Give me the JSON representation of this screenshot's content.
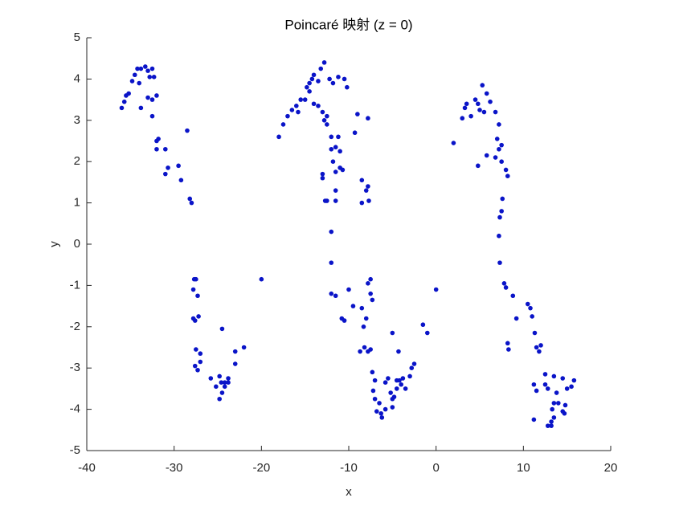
{
  "chart_data": {
    "type": "scatter",
    "title": "Poincaré 映射 (z = 0)",
    "x_label": "x",
    "y_label": "y",
    "color": "#0a14c8",
    "x": [
      -36,
      -35.7,
      -35.5,
      -35.2,
      -34.8,
      -34.5,
      -34.2,
      -33.8,
      -33.3,
      -33,
      -32.5,
      -32.3,
      -32.8,
      -34,
      -33.8,
      -33,
      -32.5,
      -32,
      -32.5,
      -32,
      -31.8,
      -32,
      -31,
      -31,
      -30.7,
      -29.5,
      -29.2,
      -28.5,
      -28.2,
      -28,
      -27.7,
      -27.5,
      -27.8,
      -27.3,
      -27.8,
      -27.6,
      -27.2,
      -27.5,
      -27,
      -27,
      -27.6,
      -27.3,
      -25.8,
      -25.2,
      -24.8,
      -24.6,
      -24.5,
      -24.8,
      -24.2,
      -23.8,
      -23.8,
      -24.5,
      -23,
      -22,
      -23,
      -24.2,
      -20,
      -18,
      -17.5,
      -17,
      -16.5,
      -16,
      -15.8,
      -15.5,
      -15,
      -14.8,
      -14.5,
      -14.2,
      -14,
      -13.5,
      -13.2,
      -12.8,
      -12.2,
      -11.8,
      -11.2,
      -10.5,
      -10.2,
      -14.5,
      -14,
      -13.5,
      -13,
      -12.5,
      -12.8,
      -12.5,
      -12,
      -12,
      -11.8,
      -11.5,
      -11,
      -11.2,
      -11,
      -10.7,
      -11.5,
      -13,
      -13,
      -12.7,
      -12.5,
      -11.5,
      -11.5,
      -12,
      -12,
      -12,
      -11.5,
      -10.8,
      -10.5,
      -10,
      -9.5,
      -8.5,
      -8.3,
      -8.7,
      -8.2,
      -7.8,
      -7.5,
      -8,
      -7.5,
      -7.8,
      -7.5,
      -7.3,
      -8.5,
      -8,
      -7.8,
      -7.8,
      -9,
      -9.3,
      -8.5,
      -7.7,
      -7.3,
      -7,
      -7.2,
      -7,
      -6.8,
      -6.5,
      -6.3,
      -6.2,
      -5.8,
      -5.5,
      -5.2,
      -5,
      -5,
      -4.8,
      -4.5,
      -4.2,
      -4,
      -3.8,
      -3.5,
      -3,
      -2.8,
      -2.5,
      -4.3,
      -5,
      -5.8,
      -4.5,
      -1.5,
      -1,
      0,
      2,
      3,
      3.3,
      3.5,
      4,
      4.5,
      4.8,
      5,
      5.3,
      5.5,
      5.8,
      6.2,
      6.8,
      7.2,
      7.5,
      7,
      7.2,
      6.8,
      7.5,
      8,
      8.2,
      5.8,
      4.8,
      7.6,
      7.5,
      7.3,
      7.2,
      7.3,
      7.8,
      8,
      8.8,
      9.2,
      10.5,
      10.8,
      11,
      11.3,
      11.5,
      12,
      11.8,
      8.2,
      8.3,
      11.2,
      11.5,
      12.5,
      12.8,
      12.5,
      13.5,
      13.8,
      14.5,
      14,
      15,
      15.5,
      15.8,
      14.5,
      14.8,
      13.5,
      13.2,
      12.8,
      13.2,
      11.2,
      13.3,
      13.5,
      14.7
    ],
    "y": [
      3.3,
      3.45,
      3.6,
      3.65,
      3.95,
      4.1,
      4.25,
      4.25,
      4.3,
      4.2,
      4.25,
      4.05,
      4.05,
      3.9,
      3.3,
      3.55,
      3.5,
      3.6,
      3.1,
      2.5,
      2.55,
      2.3,
      2.3,
      1.7,
      1.85,
      1.9,
      1.55,
      2.75,
      1.1,
      1.0,
      -0.85,
      -0.85,
      -1.1,
      -1.25,
      -1.8,
      -1.85,
      -1.75,
      -2.55,
      -2.65,
      -2.85,
      -2.95,
      -3.05,
      -3.25,
      -3.45,
      -3.2,
      -3.35,
      -3.6,
      -3.75,
      -3.35,
      -3.25,
      -3.35,
      -2.05,
      -2.6,
      -2.5,
      -2.9,
      -3.45,
      -0.85,
      2.6,
      2.9,
      3.1,
      3.25,
      3.35,
      3.2,
      3.5,
      3.5,
      3.8,
      3.9,
      4.0,
      4.1,
      3.95,
      4.25,
      4.4,
      4.0,
      3.9,
      4.05,
      4.0,
      3.8,
      3.7,
      3.4,
      3.35,
      3.2,
      3.1,
      3.0,
      2.9,
      2.6,
      2.3,
      2.0,
      2.35,
      2.25,
      2.6,
      1.85,
      1.8,
      1.75,
      1.7,
      1.6,
      1.05,
      1.05,
      1.3,
      1.05,
      0.3,
      -0.45,
      -1.2,
      -1.25,
      -1.8,
      -1.85,
      -1.1,
      -1.5,
      -1.55,
      -2.0,
      -2.6,
      -2.5,
      -2.6,
      -2.55,
      -1.8,
      -0.85,
      -0.95,
      -1.2,
      -1.35,
      1.55,
      1.3,
      1.4,
      3.05,
      3.15,
      2.7,
      1.0,
      1.05,
      -3.1,
      -3.3,
      -3.55,
      -3.75,
      -4.05,
      -3.85,
      -4.1,
      -4.2,
      -3.35,
      -3.25,
      -3.6,
      -3.75,
      -3.95,
      -3.7,
      -3.5,
      -3.3,
      -3.4,
      -3.25,
      -3.5,
      -3.2,
      -3.0,
      -2.9,
      -2.6,
      -2.15,
      -4.0,
      -3.3,
      -1.95,
      -2.15,
      -1.1,
      2.45,
      3.05,
      3.3,
      3.4,
      3.1,
      3.5,
      3.4,
      3.25,
      3.85,
      3.2,
      3.65,
      3.45,
      3.2,
      2.9,
      2.4,
      2.55,
      2.3,
      2.1,
      2.0,
      1.8,
      1.65,
      2.15,
      1.9,
      1.1,
      0.8,
      0.65,
      0.2,
      -0.45,
      -0.95,
      -1.05,
      -1.25,
      -1.8,
      -1.45,
      -1.55,
      -1.75,
      -2.15,
      -2.5,
      -2.45,
      -2.6,
      -2.4,
      -2.55,
      -3.4,
      -3.55,
      -3.15,
      -3.5,
      -3.4,
      -3.2,
      -3.6,
      -3.25,
      -3.85,
      -3.5,
      -3.45,
      -3.3,
      -4.05,
      -3.9,
      -4.2,
      -4.3,
      -4.4,
      -4.4,
      -4.25,
      -4.0,
      -3.85,
      -4.1
    ],
    "xlim": [
      -40,
      20
    ],
    "xticks": [
      -40,
      -30,
      -20,
      -10,
      0,
      10,
      20
    ],
    "ylim": [
      -5,
      5
    ],
    "yticks": [
      -5,
      -4,
      -3,
      -2,
      -1,
      0,
      1,
      2,
      3,
      4,
      5
    ]
  }
}
